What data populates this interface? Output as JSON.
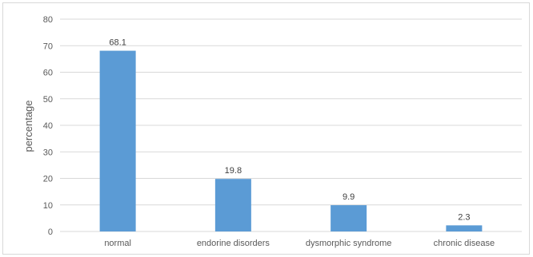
{
  "chart_data": {
    "type": "bar",
    "categories": [
      "normal",
      "endorine disorders",
      "dysmorphic syndrome",
      "chronic disease"
    ],
    "values": [
      68.1,
      19.8,
      9.9,
      2.3
    ],
    "data_labels": [
      "68.1",
      "19.8",
      "9.9",
      "2.3"
    ],
    "ylabel": "percentage",
    "ylim": [
      0,
      80
    ],
    "yticks": [
      0,
      10,
      20,
      30,
      40,
      50,
      60,
      70,
      80
    ],
    "grid": true,
    "legend": "none",
    "bar_color": "#5b9bd5",
    "grid_color": "#d9d9d9"
  }
}
